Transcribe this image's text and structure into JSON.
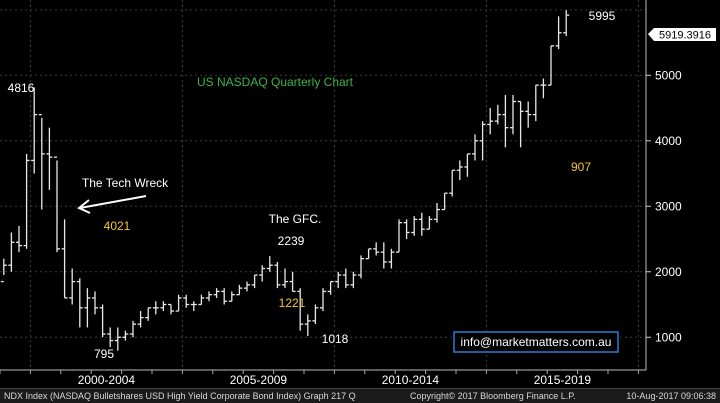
{
  "chart_data": {
    "type": "ohlc",
    "title": "US NASDAQ Quarterly Chart",
    "ylim": [
      500,
      6150
    ],
    "y_ticks": [
      1000,
      2000,
      3000,
      4000,
      5000
    ],
    "x_tick_labels": [
      "2000-2004",
      "2005-2009",
      "2010-2014",
      "2015-2019"
    ],
    "x_quarter_range": [
      1998.875,
      2020.125
    ],
    "last_price": "5919.3916",
    "series": [
      {
        "values": [
          {
            "q": 1999.0,
            "o": 1850,
            "h": 2200,
            "l": 1950,
            "c": 2100
          },
          {
            "q": 1999.25,
            "o": 2100,
            "h": 2600,
            "l": 2000,
            "c": 2450
          },
          {
            "q": 1999.5,
            "o": 2450,
            "h": 2700,
            "l": 2300,
            "c": 2400
          },
          {
            "q": 1999.75,
            "o": 2400,
            "h": 3800,
            "l": 2350,
            "c": 3700
          },
          {
            "q": 2000.0,
            "o": 3700,
            "h": 4816,
            "l": 3500,
            "c": 4400
          },
          {
            "q": 2000.25,
            "o": 4400,
            "h": 4350,
            "l": 2950,
            "c": 3800
          },
          {
            "q": 2000.5,
            "o": 3800,
            "h": 4200,
            "l": 3250,
            "c": 3750
          },
          {
            "q": 2000.75,
            "o": 3750,
            "h": 3700,
            "l": 2300,
            "c": 2350
          },
          {
            "q": 2001.0,
            "o": 2350,
            "h": 2800,
            "l": 1600,
            "c": 1600
          },
          {
            "q": 2001.25,
            "o": 1600,
            "h": 2050,
            "l": 1500,
            "c": 1850
          },
          {
            "q": 2001.5,
            "o": 1850,
            "h": 1900,
            "l": 1150,
            "c": 1450
          },
          {
            "q": 2001.75,
            "o": 1450,
            "h": 1750,
            "l": 1150,
            "c": 1600
          },
          {
            "q": 2002.0,
            "o": 1600,
            "h": 1700,
            "l": 1350,
            "c": 1450
          },
          {
            "q": 2002.25,
            "o": 1450,
            "h": 1500,
            "l": 1000,
            "c": 1050
          },
          {
            "q": 2002.5,
            "o": 1050,
            "h": 1150,
            "l": 850,
            "c": 950
          },
          {
            "q": 2002.75,
            "o": 950,
            "h": 1150,
            "l": 795,
            "c": 1000
          },
          {
            "q": 2003.0,
            "o": 1000,
            "h": 1100,
            "l": 950,
            "c": 1050
          },
          {
            "q": 2003.25,
            "o": 1050,
            "h": 1250,
            "l": 1000,
            "c": 1200
          },
          {
            "q": 2003.5,
            "o": 1200,
            "h": 1400,
            "l": 1150,
            "c": 1300
          },
          {
            "q": 2003.75,
            "o": 1300,
            "h": 1450,
            "l": 1250,
            "c": 1450
          },
          {
            "q": 2004.0,
            "o": 1450,
            "h": 1550,
            "l": 1350,
            "c": 1450
          },
          {
            "q": 2004.25,
            "o": 1450,
            "h": 1550,
            "l": 1400,
            "c": 1500
          },
          {
            "q": 2004.5,
            "o": 1500,
            "h": 1500,
            "l": 1350,
            "c": 1400
          },
          {
            "q": 2004.75,
            "o": 1400,
            "h": 1650,
            "l": 1400,
            "c": 1600
          },
          {
            "q": 2005.0,
            "o": 1600,
            "h": 1650,
            "l": 1450,
            "c": 1500
          },
          {
            "q": 2005.25,
            "o": 1500,
            "h": 1550,
            "l": 1400,
            "c": 1500
          },
          {
            "q": 2005.5,
            "o": 1500,
            "h": 1650,
            "l": 1500,
            "c": 1600
          },
          {
            "q": 2005.75,
            "o": 1600,
            "h": 1700,
            "l": 1550,
            "c": 1650
          },
          {
            "q": 2006.0,
            "o": 1650,
            "h": 1750,
            "l": 1600,
            "c": 1700
          },
          {
            "q": 2006.25,
            "o": 1700,
            "h": 1750,
            "l": 1500,
            "c": 1550
          },
          {
            "q": 2006.5,
            "o": 1550,
            "h": 1700,
            "l": 1550,
            "c": 1650
          },
          {
            "q": 2006.75,
            "o": 1650,
            "h": 1800,
            "l": 1650,
            "c": 1750
          },
          {
            "q": 2007.0,
            "o": 1750,
            "h": 1850,
            "l": 1700,
            "c": 1800
          },
          {
            "q": 2007.25,
            "o": 1800,
            "h": 1950,
            "l": 1750,
            "c": 1950
          },
          {
            "q": 2007.5,
            "o": 1950,
            "h": 2100,
            "l": 1850,
            "c": 2050
          },
          {
            "q": 2007.75,
            "o": 2050,
            "h": 2239,
            "l": 2000,
            "c": 2100
          },
          {
            "q": 2008.0,
            "o": 2100,
            "h": 2150,
            "l": 1750,
            "c": 1800
          },
          {
            "q": 2008.25,
            "o": 1800,
            "h": 2050,
            "l": 1750,
            "c": 1850
          },
          {
            "q": 2008.5,
            "o": 1850,
            "h": 2000,
            "l": 1700,
            "c": 1700
          },
          {
            "q": 2008.75,
            "o": 1700,
            "h": 1750,
            "l": 1100,
            "c": 1200
          },
          {
            "q": 2009.0,
            "o": 1200,
            "h": 1350,
            "l": 1018,
            "c": 1250
          },
          {
            "q": 2009.25,
            "o": 1250,
            "h": 1500,
            "l": 1200,
            "c": 1450
          },
          {
            "q": 2009.5,
            "o": 1450,
            "h": 1750,
            "l": 1400,
            "c": 1700
          },
          {
            "q": 2009.75,
            "o": 1700,
            "h": 1850,
            "l": 1650,
            "c": 1850
          },
          {
            "q": 2010.0,
            "o": 1850,
            "h": 2000,
            "l": 1750,
            "c": 1950
          },
          {
            "q": 2010.25,
            "o": 1950,
            "h": 2050,
            "l": 1750,
            "c": 1800
          },
          {
            "q": 2010.5,
            "o": 1800,
            "h": 2000,
            "l": 1750,
            "c": 1950
          },
          {
            "q": 2010.75,
            "o": 1950,
            "h": 2250,
            "l": 1900,
            "c": 2200
          },
          {
            "q": 2011.0,
            "o": 2200,
            "h": 2350,
            "l": 2200,
            "c": 2350
          },
          {
            "q": 2011.25,
            "o": 2350,
            "h": 2450,
            "l": 2250,
            "c": 2300
          },
          {
            "q": 2011.5,
            "o": 2300,
            "h": 2450,
            "l": 2050,
            "c": 2150
          },
          {
            "q": 2011.75,
            "o": 2150,
            "h": 2350,
            "l": 2050,
            "c": 2300
          },
          {
            "q": 2012.0,
            "o": 2300,
            "h": 2800,
            "l": 2300,
            "c": 2750
          },
          {
            "q": 2012.25,
            "o": 2750,
            "h": 2800,
            "l": 2500,
            "c": 2600
          },
          {
            "q": 2012.5,
            "o": 2600,
            "h": 2850,
            "l": 2550,
            "c": 2800
          },
          {
            "q": 2012.75,
            "o": 2800,
            "h": 2900,
            "l": 2550,
            "c": 2650
          },
          {
            "q": 2013.0,
            "o": 2650,
            "h": 2850,
            "l": 2650,
            "c": 2800
          },
          {
            "q": 2013.25,
            "o": 2800,
            "h": 3050,
            "l": 2750,
            "c": 2950
          },
          {
            "q": 2013.5,
            "o": 2950,
            "h": 3200,
            "l": 2950,
            "c": 3200
          },
          {
            "q": 2013.75,
            "o": 3200,
            "h": 3550,
            "l": 3150,
            "c": 3550
          },
          {
            "q": 2014.0,
            "o": 3550,
            "h": 3700,
            "l": 3400,
            "c": 3600
          },
          {
            "q": 2014.25,
            "o": 3600,
            "h": 3800,
            "l": 3450,
            "c": 3800
          },
          {
            "q": 2014.5,
            "o": 3800,
            "h": 4100,
            "l": 3700,
            "c": 4000
          },
          {
            "q": 2014.75,
            "o": 4000,
            "h": 4300,
            "l": 3700,
            "c": 4250
          },
          {
            "q": 2015.0,
            "o": 4250,
            "h": 4500,
            "l": 4100,
            "c": 4300
          },
          {
            "q": 2015.25,
            "o": 4300,
            "h": 4550,
            "l": 4250,
            "c": 4400
          },
          {
            "q": 2015.5,
            "o": 4400,
            "h": 4700,
            "l": 3900,
            "c": 4200
          },
          {
            "q": 2015.75,
            "o": 4200,
            "h": 4700,
            "l": 4100,
            "c": 4600
          },
          {
            "q": 2016.0,
            "o": 4600,
            "h": 4600,
            "l": 3900,
            "c": 4450
          },
          {
            "q": 2016.25,
            "o": 4450,
            "h": 4600,
            "l": 4200,
            "c": 4400
          },
          {
            "q": 2016.5,
            "o": 4400,
            "h": 4850,
            "l": 4300,
            "c": 4850
          },
          {
            "q": 2016.75,
            "o": 4850,
            "h": 4950,
            "l": 4650,
            "c": 4850
          },
          {
            "q": 2017.0,
            "o": 4850,
            "h": 5450,
            "l": 4850,
            "c": 5450
          },
          {
            "q": 2017.25,
            "o": 5450,
            "h": 5900,
            "l": 5400,
            "c": 5650
          },
          {
            "q": 2017.5,
            "o": 5650,
            "h": 5995,
            "l": 5600,
            "c": 5919
          }
        ]
      }
    ],
    "annotations": {
      "label_4816": "4816",
      "tech_wreck": "The Tech Wreck",
      "val_4021": "4021",
      "label_795": "795",
      "gfc": "The GFC.",
      "label_2239": "2239",
      "val_1221": "1221",
      "label_1018": "1018",
      "val_907": "907",
      "label_5995": "5995",
      "watermark": "info@marketmatters.com.au"
    },
    "colors": {
      "bars": "#e8e8e8",
      "title": "#3cb44b",
      "highlight": "#f4c430",
      "text": "#ffffff",
      "grid": "#3a3a3a",
      "watermark_border": "#2b7bd6"
    }
  },
  "footer": {
    "left": "NDX Index (NASDAQ Bulletshares USD High Yield Corporate Bond Index) Graph 217  Q",
    "middle": "Copyright© 2017 Bloomberg Finance L.P.",
    "right": "10-Aug-2017 09:06:38"
  }
}
